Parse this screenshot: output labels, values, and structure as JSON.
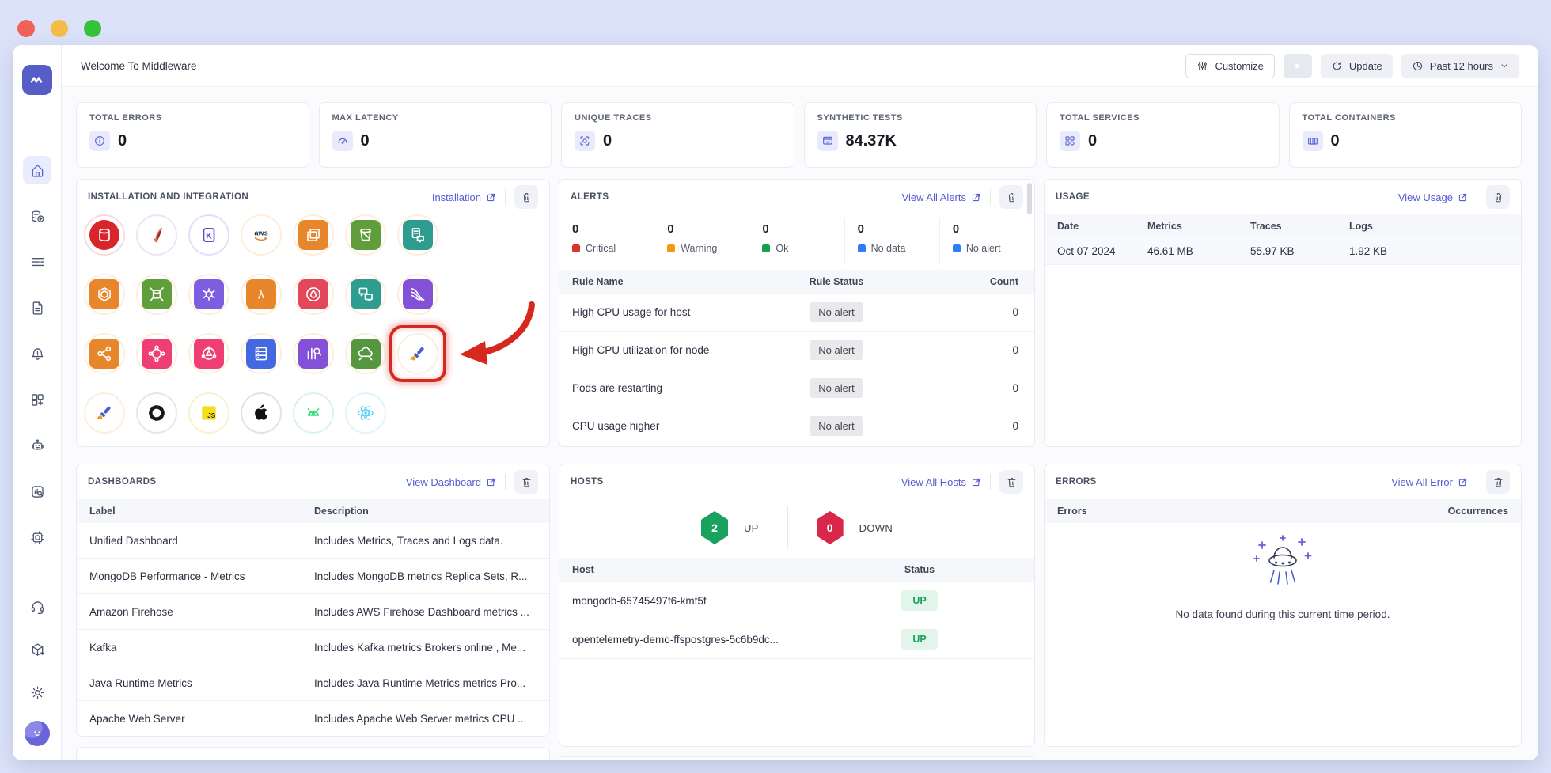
{
  "window": {
    "title": "Welcome To Middleware"
  },
  "topbar": {
    "customize": "Customize",
    "update": "Update",
    "time_range": "Past 12 hours"
  },
  "stats": [
    {
      "label": "TOTAL ERRORS",
      "value": "0",
      "icon": "info-icon"
    },
    {
      "label": "MAX LATENCY",
      "value": "0",
      "icon": "gauge-icon"
    },
    {
      "label": "UNIQUE TRACES",
      "value": "0",
      "icon": "trace-scan-icon"
    },
    {
      "label": "SYNTHETIC TESTS",
      "value": "84.37K",
      "icon": "browser-check-icon"
    },
    {
      "label": "TOTAL SERVICES",
      "value": "0",
      "icon": "services-icon"
    },
    {
      "label": "TOTAL CONTAINERS",
      "value": "0",
      "icon": "containers-icon"
    }
  ],
  "installation": {
    "title": "INSTALLATION AND INTEGRATION",
    "link": "Installation",
    "icons": [
      {
        "name": "redis-database",
        "shape": "circle",
        "bg": "#d8252b",
        "ring": "#f7dbdb",
        "g": "cyl"
      },
      {
        "name": "apache",
        "shape": "plain",
        "bg": "",
        "ring": "#e9e6f7",
        "g": "feather"
      },
      {
        "name": "framework-k",
        "shape": "plain",
        "bg": "",
        "ring": "#e3defa",
        "g": "ktext"
      },
      {
        "name": "aws",
        "shape": "plain",
        "bg": "",
        "ring": "#fdeedb",
        "g": "awstext"
      },
      {
        "name": "aws-compute",
        "shape": "square",
        "bg": "#e8862c",
        "ring": "#fdeedb",
        "g": "chip"
      },
      {
        "name": "amazon-s3-bucket",
        "shape": "square",
        "bg": "#5f9e3a",
        "ring": "#fdeedb",
        "g": "bucket"
      },
      {
        "name": "aws-document-chat",
        "shape": "square",
        "bg": "#2e9c8e",
        "ring": "#fdeedb",
        "g": "docchat"
      },
      {
        "name": "aws-hexagon-service",
        "shape": "square",
        "bg": "#e8862c",
        "ring": "#fdeedb",
        "g": "hexagon"
      },
      {
        "name": "aws-scaling-database",
        "shape": "square",
        "bg": "#5f9e3a",
        "ring": "#fdeedb",
        "g": "cylarr"
      },
      {
        "name": "aws-iot-service",
        "shape": "square",
        "bg": "#7b5fe0",
        "ring": "#fdeedb",
        "g": "bug"
      },
      {
        "name": "aws-lambda",
        "shape": "square",
        "bg": "#e8862c",
        "ring": "#fdeedb",
        "g": "lambda"
      },
      {
        "name": "aws-detective",
        "shape": "square",
        "bg": "#e3485a",
        "ring": "#fdeedb",
        "g": "flame"
      },
      {
        "name": "aws-chatbot",
        "shape": "square",
        "bg": "#2e9c8e",
        "ring": "#fdeedb",
        "g": "chat2"
      },
      {
        "name": "aws-kinesis-streams",
        "shape": "square",
        "bg": "#8450d8",
        "ring": "#fdeedb",
        "g": "streams"
      },
      {
        "name": "aws-share-nodes",
        "shape": "square",
        "bg": "#e8862c",
        "ring": "#fdeedb",
        "g": "share"
      },
      {
        "name": "aws-ml-service",
        "shape": "square",
        "bg": "#ef3e74",
        "ring": "#fdeedb",
        "g": "netA"
      },
      {
        "name": "aws-network-service",
        "shape": "square",
        "bg": "#ef3e74",
        "ring": "#fdeedb",
        "g": "netB"
      },
      {
        "name": "aws-elasticache",
        "shape": "square",
        "bg": "#4468e2",
        "ring": "#fdeedb",
        "g": "server"
      },
      {
        "name": "aws-insights",
        "shape": "square",
        "bg": "#8450d8",
        "ring": "#fdeedb",
        "g": "chartmag"
      },
      {
        "name": "aws-cloud-sync",
        "shape": "square",
        "bg": "#55963f",
        "ring": "#fdeedb",
        "g": "cloudarr"
      },
      {
        "name": "opentelemetry",
        "shape": "plain",
        "bg": "",
        "ring": "#fdeedb",
        "g": "otel",
        "highlight": true
      },
      {
        "name": "opentelemetry-agent",
        "shape": "plain",
        "bg": "",
        "ring": "#fdeedb",
        "g": "otel"
      },
      {
        "name": "starburst",
        "shape": "plain",
        "bg": "",
        "ring": "#e6e6e9",
        "g": "burst"
      },
      {
        "name": "javascript",
        "shape": "plain",
        "bg": "",
        "ring": "#f8f1cc",
        "g": "jsq"
      },
      {
        "name": "apple",
        "shape": "plain",
        "bg": "",
        "ring": "#e2e2e6",
        "g": "apple"
      },
      {
        "name": "android",
        "shape": "plain",
        "bg": "",
        "ring": "#d9f4e3",
        "g": "android"
      },
      {
        "name": "react",
        "shape": "plain",
        "bg": "",
        "ring": "#dff4fb",
        "g": "react"
      }
    ]
  },
  "alerts": {
    "title": "ALERTS",
    "link": "View All Alerts",
    "summary": [
      {
        "value": "0",
        "label": "Critical",
        "color": "#d7342c"
      },
      {
        "value": "0",
        "label": "Warning",
        "color": "#f09a0c"
      },
      {
        "value": "0",
        "label": "Ok",
        "color": "#13a050"
      },
      {
        "value": "0",
        "label": "No data",
        "color": "#2f7df6"
      },
      {
        "value": "0",
        "label": "No alert",
        "color": "#2f7df6"
      }
    ],
    "headers": {
      "name": "Rule Name",
      "status": "Rule Status",
      "count": "Count"
    },
    "rows": [
      {
        "name": "High CPU usage for host",
        "status": "No alert",
        "count": "0"
      },
      {
        "name": "High CPU utilization for node",
        "status": "No alert",
        "count": "0"
      },
      {
        "name": "Pods are restarting",
        "status": "No alert",
        "count": "0"
      },
      {
        "name": "CPU usage higher",
        "status": "No alert",
        "count": "0"
      }
    ]
  },
  "usage": {
    "title": "USAGE",
    "link": "View Usage",
    "headers": [
      "Date",
      "Metrics",
      "Traces",
      "Logs"
    ],
    "rows": [
      [
        "Oct 07 2024",
        "46.61 MB",
        "55.97 KB",
        "1.92 KB"
      ]
    ]
  },
  "dashboards": {
    "title": "DASHBOARDS",
    "link": "View Dashboard",
    "headers": [
      "Label",
      "Description"
    ],
    "rows": [
      [
        "Unified Dashboard",
        "Includes Metrics, Traces and Logs data."
      ],
      [
        "MongoDB Performance - Metrics",
        "Includes MongoDB metrics Replica Sets, R..."
      ],
      [
        "Amazon Firehose",
        "Includes AWS Firehose Dashboard metrics ..."
      ],
      [
        "Kafka",
        "Includes Kafka metrics Brokers online , Me..."
      ],
      [
        "Java Runtime Metrics",
        "Includes Java Runtime Metrics metrics Pro..."
      ],
      [
        "Apache Web Server",
        "Includes Apache Web Server metrics CPU ..."
      ]
    ]
  },
  "hosts": {
    "title": "HOSTS",
    "link": "View All Hosts",
    "up": {
      "count": "2",
      "label": "UP"
    },
    "down": {
      "count": "0",
      "label": "DOWN"
    },
    "headers": {
      "host": "Host",
      "status": "Status"
    },
    "rows": [
      {
        "host": "mongodb-65745497f6-kmf5f",
        "status": "UP"
      },
      {
        "host": "opentelemetry-demo-ffspostgres-5c6b9dc...",
        "status": "UP"
      }
    ]
  },
  "errors": {
    "title": "ERRORS",
    "link": "View All Error",
    "headers": {
      "errors": "Errors",
      "occurrences": "Occurrences"
    },
    "empty_message": "No data found during this current time period."
  },
  "colors": {
    "accent": "#575dd0",
    "up": "#18a15f",
    "down": "#d8274a",
    "annotation": "#d7281e"
  }
}
